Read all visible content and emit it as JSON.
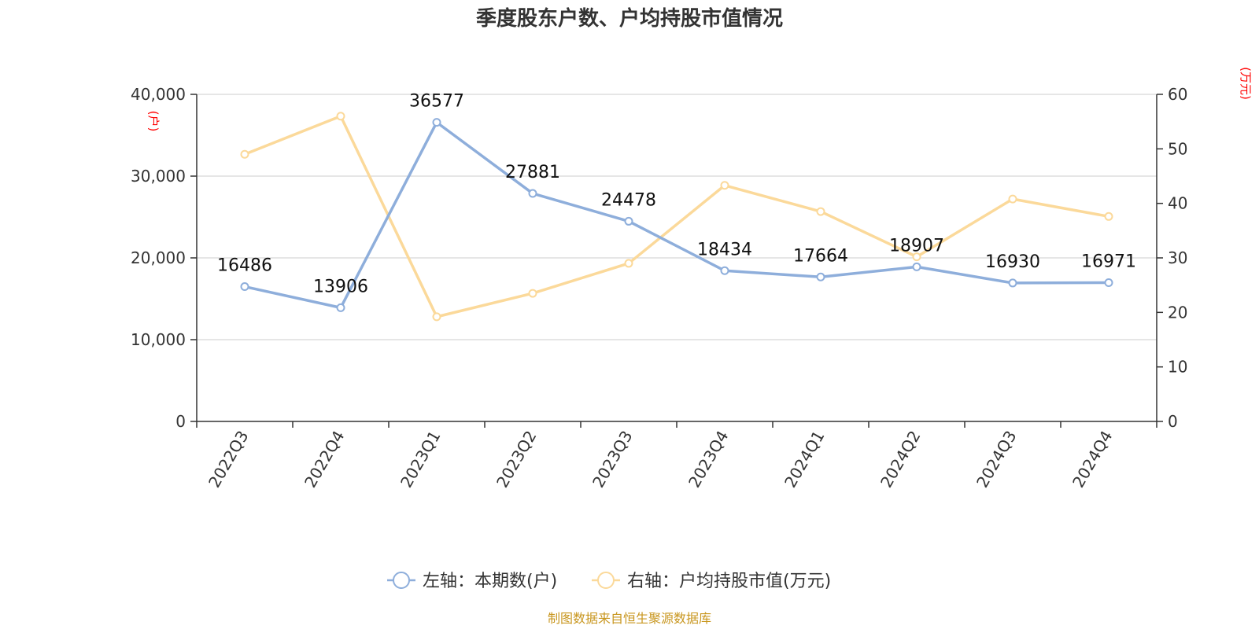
{
  "chart_data": {
    "type": "line",
    "title": "季度股东户数、户均持股市值情况",
    "categories": [
      "2022Q3",
      "2022Q4",
      "2023Q1",
      "2023Q2",
      "2023Q3",
      "2023Q4",
      "2024Q1",
      "2024Q2",
      "2024Q3",
      "2024Q4"
    ],
    "y_left": {
      "unit": "(户)",
      "ylim": [
        0,
        40000
      ],
      "ticks": [
        "0",
        "10,000",
        "20,000",
        "30,000",
        "40,000"
      ]
    },
    "y_right": {
      "unit": "(万元)",
      "ylim": [
        0,
        60
      ],
      "ticks": [
        "0",
        "10",
        "20",
        "30",
        "40",
        "50",
        "60"
      ]
    },
    "series": [
      {
        "name": "左轴：本期数(户)",
        "axis": "left",
        "color": "#8eaedb",
        "values": [
          16486,
          13906,
          36577,
          27881,
          24478,
          18434,
          17664,
          18907,
          16930,
          16971
        ],
        "labels": [
          "16486",
          "13906",
          "36577",
          "27881",
          "24478",
          "18434",
          "17664",
          "18907",
          "16930",
          "16971"
        ]
      },
      {
        "name": "右轴：户均持股市值(万元)",
        "axis": "right",
        "color": "#fbd99a",
        "values": [
          49.0,
          56.0,
          19.2,
          23.5,
          29.0,
          43.3,
          38.5,
          30.2,
          40.8,
          37.6
        ]
      }
    ],
    "grid": true,
    "legend_position": "bottom-center"
  },
  "source": "制图数据来自恒生聚源数据库"
}
